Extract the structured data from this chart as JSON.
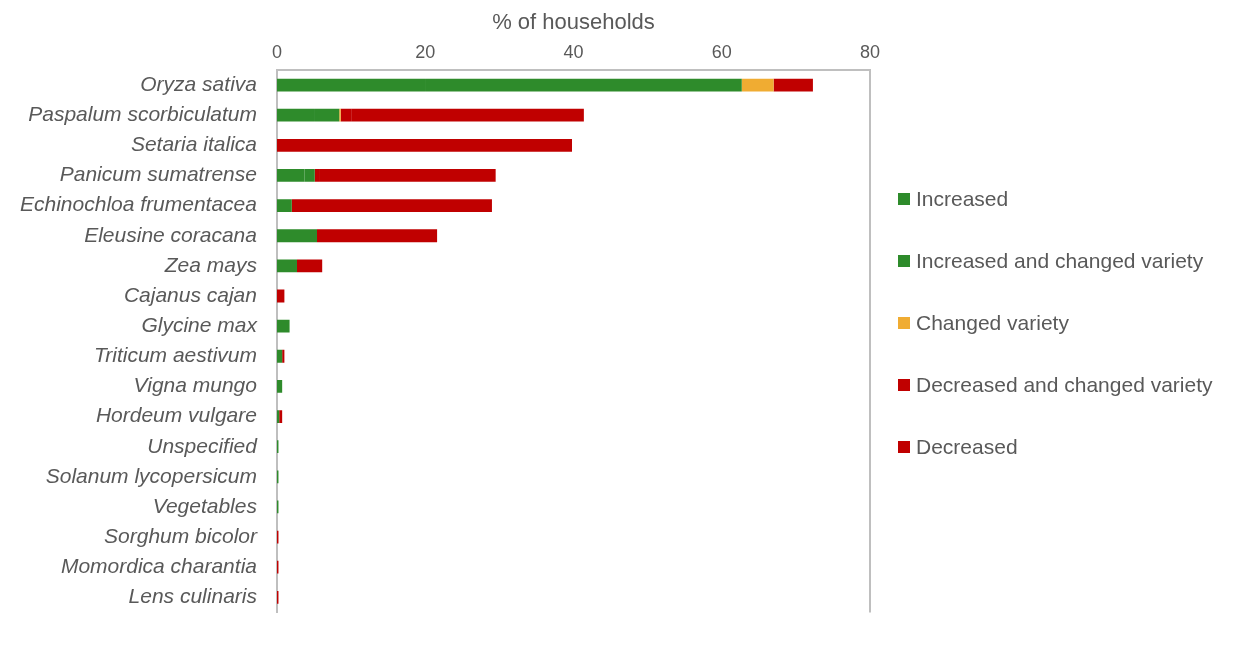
{
  "chart_data": {
    "type": "bar",
    "orientation": "horizontal",
    "stacked": true,
    "xlabel": "% of households",
    "categories": [
      "Oryza sativa",
      "Paspalum scorbiculatum",
      "Setaria italica",
      "Panicum sumatrense",
      "Echinochloa frumentacea",
      "Eleusine coracana",
      "Zea mays",
      "Cajanus cajan",
      "Glycine max",
      "Triticum aestivum",
      "Vigna mungo",
      "Hordeum vulgare",
      "Unspecified",
      "Solanum lycopersicum",
      "Vegetables",
      "Sorghum bicolor",
      "Momordica charantia",
      "Lens culinaris"
    ],
    "series": [
      {
        "name": "Increased",
        "color": "#2e8b2b",
        "values": [
          20.1,
          5.0,
          null,
          3.7,
          2.0,
          5.4,
          2.7,
          null,
          1.7,
          0.7,
          0.7,
          0.3,
          0.2,
          0.2,
          0.2,
          null,
          null,
          null
        ]
      },
      {
        "name": "Increased and changed variety",
        "color": "#2e8b2b",
        "values": [
          42.6,
          3.4,
          null,
          1.4,
          null,
          null,
          null,
          null,
          null,
          null,
          null,
          null,
          null,
          null,
          null,
          null,
          null,
          null
        ]
      },
      {
        "name": "Changed variety",
        "color": "#f0ac32",
        "values": [
          4.3,
          0.2,
          null,
          null,
          null,
          null,
          null,
          null,
          null,
          null,
          null,
          null,
          null,
          null,
          null,
          null,
          null,
          null
        ]
      },
      {
        "name": "Decreased and changed variety",
        "color": "#c00000",
        "values": [
          5.3,
          1.5,
          null,
          0.7,
          null,
          null,
          null,
          null,
          null,
          null,
          null,
          null,
          null,
          null,
          null,
          null,
          null,
          null
        ]
      },
      {
        "name": "Decreased",
        "color": "#c00000",
        "values": [
          null,
          31.3,
          39.8,
          23.7,
          27.0,
          16.2,
          3.4,
          1.0,
          null,
          0.3,
          null,
          0.4,
          null,
          null,
          null,
          0.2,
          0.2,
          0.2
        ]
      }
    ],
    "xlim": [
      0,
      80
    ],
    "xticks": [
      0,
      20,
      40,
      60,
      80
    ],
    "grid": false,
    "legend": "right"
  }
}
